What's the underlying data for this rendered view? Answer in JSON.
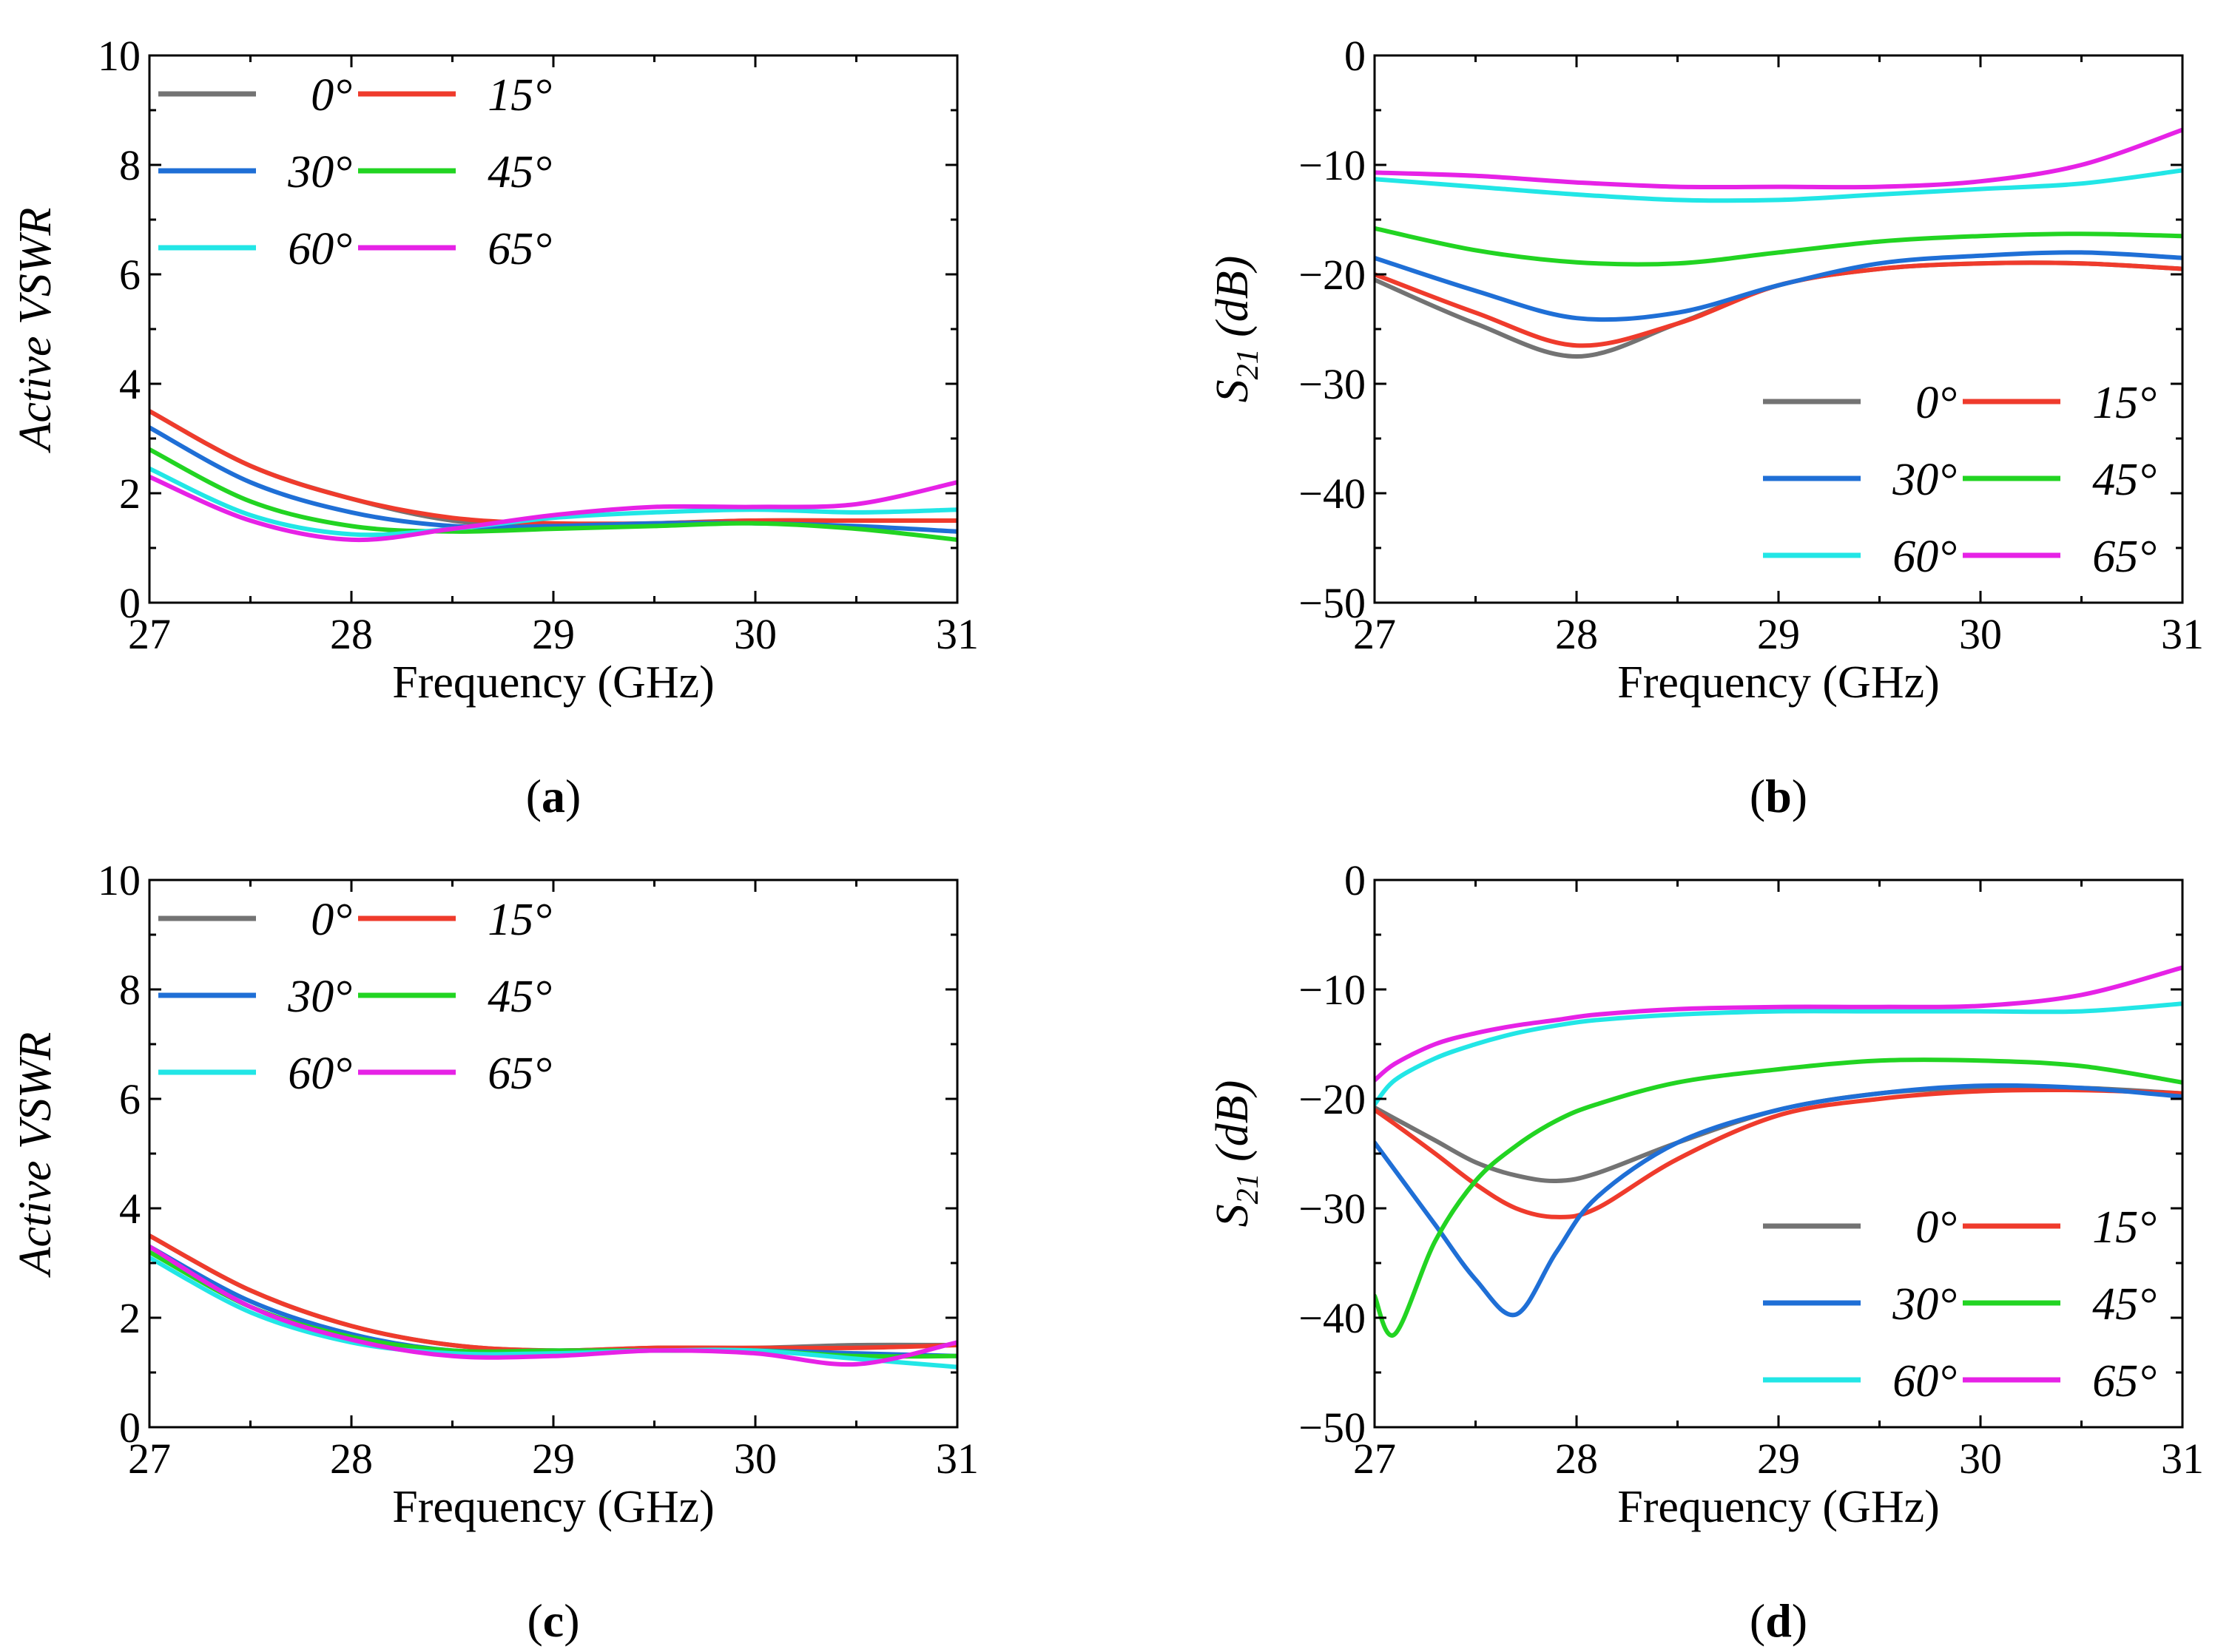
{
  "chart_data": [
    {
      "type": "line",
      "panel_label": "a",
      "xlabel": "Frequency (GHz)",
      "ylabel": "Active VSWR",
      "xlim": [
        27,
        31
      ],
      "ylim": [
        0,
        10
      ],
      "xticks": [
        27,
        28,
        29,
        30,
        31
      ],
      "yticks": [
        0,
        2,
        4,
        6,
        8,
        10
      ],
      "legend_position": "top-left",
      "x": [
        27.0,
        27.5,
        28.0,
        28.5,
        29.0,
        29.5,
        30.0,
        30.5,
        31.0
      ],
      "series": [
        {
          "name": "0°",
          "color": "#737373",
          "values": [
            3.5,
            2.5,
            1.9,
            1.5,
            1.4,
            1.45,
            1.5,
            1.5,
            1.5
          ]
        },
        {
          "name": "15°",
          "color": "#ef3b2c",
          "values": [
            3.5,
            2.5,
            1.9,
            1.55,
            1.45,
            1.45,
            1.5,
            1.5,
            1.5
          ]
        },
        {
          "name": "30°",
          "color": "#1f6fd6",
          "values": [
            3.2,
            2.2,
            1.65,
            1.4,
            1.4,
            1.45,
            1.45,
            1.4,
            1.3
          ]
        },
        {
          "name": "45°",
          "color": "#22d422",
          "values": [
            2.8,
            1.85,
            1.4,
            1.3,
            1.35,
            1.4,
            1.45,
            1.35,
            1.15
          ]
        },
        {
          "name": "60°",
          "color": "#22e6e6",
          "values": [
            2.45,
            1.6,
            1.25,
            1.35,
            1.55,
            1.65,
            1.7,
            1.65,
            1.7
          ]
        },
        {
          "name": "65°",
          "color": "#e622e6",
          "values": [
            2.3,
            1.5,
            1.15,
            1.35,
            1.6,
            1.75,
            1.75,
            1.8,
            2.2
          ]
        }
      ]
    },
    {
      "type": "line",
      "panel_label": "b",
      "xlabel": "Frequency (GHz)",
      "ylabel": "S21 (dB)",
      "ylabel_main": "S",
      "ylabel_sub": "21",
      "ylabel_rest": "(dB)",
      "xlim": [
        27,
        31
      ],
      "ylim": [
        -50,
        0
      ],
      "xticks": [
        27,
        28,
        29,
        30,
        31
      ],
      "yticks": [
        0,
        -10,
        -20,
        -30,
        -40,
        -50
      ],
      "legend_position": "bottom-right",
      "x": [
        27.0,
        27.5,
        28.0,
        28.5,
        29.0,
        29.5,
        30.0,
        30.5,
        31.0
      ],
      "series": [
        {
          "name": "0°",
          "color": "#737373",
          "values": [
            -20.5,
            -24.5,
            -27.5,
            -24.5,
            -21,
            -19.5,
            -19,
            -19,
            -19.5
          ]
        },
        {
          "name": "15°",
          "color": "#ef3b2c",
          "values": [
            -20,
            -23.5,
            -26.5,
            -24.5,
            -21,
            -19.5,
            -19,
            -19,
            -19.5
          ]
        },
        {
          "name": "30°",
          "color": "#1f6fd6",
          "values": [
            -18.5,
            -21.5,
            -24,
            -23.5,
            -21,
            -19,
            -18.3,
            -18,
            -18.5
          ]
        },
        {
          "name": "45°",
          "color": "#22d422",
          "values": [
            -15.8,
            -17.8,
            -18.9,
            -19,
            -18,
            -17,
            -16.5,
            -16.3,
            -16.5
          ]
        },
        {
          "name": "60°",
          "color": "#22e6e6",
          "values": [
            -11.3,
            -12,
            -12.7,
            -13.2,
            -13.2,
            -12.7,
            -12.2,
            -11.7,
            -10.5
          ]
        },
        {
          "name": "65°",
          "color": "#e622e6",
          "values": [
            -10.7,
            -11,
            -11.6,
            -12,
            -12,
            -12,
            -11.5,
            -10,
            -6.8
          ]
        }
      ]
    },
    {
      "type": "line",
      "panel_label": "c",
      "xlabel": "Frequency (GHz)",
      "ylabel": "Active VSWR",
      "xlim": [
        27,
        31
      ],
      "ylim": [
        0,
        10
      ],
      "xticks": [
        27,
        28,
        29,
        30,
        31
      ],
      "yticks": [
        0,
        2,
        4,
        6,
        8,
        10
      ],
      "legend_position": "top-left",
      "x": [
        27.0,
        27.5,
        28.0,
        28.5,
        29.0,
        29.5,
        30.0,
        30.5,
        31.0
      ],
      "series": [
        {
          "name": "0°",
          "color": "#737373",
          "values": [
            3.5,
            2.5,
            1.85,
            1.5,
            1.4,
            1.45,
            1.45,
            1.5,
            1.5
          ]
        },
        {
          "name": "15°",
          "color": "#ef3b2c",
          "values": [
            3.5,
            2.5,
            1.85,
            1.5,
            1.4,
            1.45,
            1.45,
            1.45,
            1.5
          ]
        },
        {
          "name": "30°",
          "color": "#1f6fd6",
          "values": [
            3.3,
            2.3,
            1.7,
            1.4,
            1.4,
            1.4,
            1.4,
            1.35,
            1.3
          ]
        },
        {
          "name": "45°",
          "color": "#22d422",
          "values": [
            3.2,
            2.2,
            1.65,
            1.4,
            1.4,
            1.4,
            1.4,
            1.3,
            1.3
          ]
        },
        {
          "name": "60°",
          "color": "#22e6e6",
          "values": [
            3.1,
            2.1,
            1.55,
            1.35,
            1.35,
            1.4,
            1.4,
            1.25,
            1.1
          ]
        },
        {
          "name": "65°",
          "color": "#e622e6",
          "values": [
            3.3,
            2.2,
            1.6,
            1.3,
            1.3,
            1.4,
            1.35,
            1.15,
            1.55
          ]
        }
      ]
    },
    {
      "type": "line",
      "panel_label": "d",
      "xlabel": "Frequency (GHz)",
      "ylabel": "S21 (dB)",
      "ylabel_main": "S",
      "ylabel_sub": "21",
      "ylabel_rest": "(dB)",
      "xlim": [
        27,
        31
      ],
      "ylim": [
        -50,
        0
      ],
      "xticks": [
        27,
        28,
        29,
        30,
        31
      ],
      "yticks": [
        0,
        -10,
        -20,
        -30,
        -40,
        -50
      ],
      "legend_position": "bottom-right",
      "x": [
        27.0,
        27.1,
        27.3,
        27.5,
        27.7,
        27.9,
        28.1,
        28.5,
        29.0,
        29.5,
        30.0,
        30.5,
        31.0
      ],
      "series": [
        {
          "name": "0°",
          "color": "#737373",
          "values": [
            -20.8,
            -21.8,
            -23.8,
            -25.8,
            -27,
            -27.5,
            -26.8,
            -24,
            -21,
            -19.5,
            -19,
            -19,
            -19.5
          ]
        },
        {
          "name": "15°",
          "color": "#ef3b2c",
          "values": [
            -21,
            -22.3,
            -25,
            -27.8,
            -30,
            -30.8,
            -30,
            -25.5,
            -21.5,
            -20,
            -19.3,
            -19.2,
            -19.5
          ]
        },
        {
          "name": "30°",
          "color": "#1f6fd6",
          "values": [
            -24,
            -26.5,
            -31.5,
            -36.5,
            -39.7,
            -34,
            -29,
            -24,
            -21,
            -19.5,
            -18.8,
            -19,
            -19.8
          ]
        },
        {
          "name": "45°",
          "color": "#22d422",
          "values": [
            -38,
            -41.5,
            -33,
            -27.5,
            -24.3,
            -22,
            -20.5,
            -18.5,
            -17.3,
            -16.5,
            -16.5,
            -17,
            -18.5
          ]
        },
        {
          "name": "60°",
          "color": "#22e6e6",
          "values": [
            -20.5,
            -18.3,
            -16.3,
            -15,
            -14,
            -13.3,
            -12.8,
            -12.3,
            -12,
            -12,
            -12,
            -12,
            -11.3
          ]
        },
        {
          "name": "65°",
          "color": "#e622e6",
          "values": [
            -18.3,
            -16.8,
            -15,
            -14,
            -13.3,
            -12.8,
            -12.3,
            -11.8,
            -11.6,
            -11.6,
            -11.5,
            -10.5,
            -8
          ]
        }
      ]
    }
  ]
}
